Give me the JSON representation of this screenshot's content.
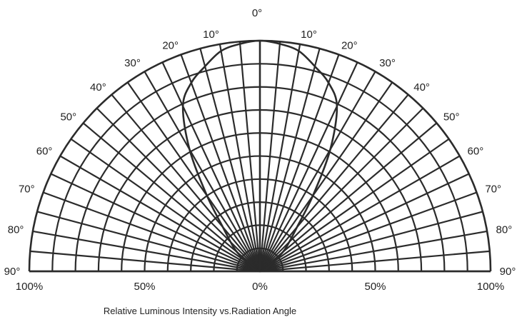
{
  "chart_data": {
    "type": "polar",
    "title": "Relative Luminous Intensity vs.Radiation Angle",
    "angle_unit": "degrees",
    "angle_ticks": [
      0,
      10,
      20,
      30,
      40,
      50,
      60,
      70,
      80,
      90
    ],
    "angle_labels_left": [
      "0°",
      "10°",
      "20°",
      "30°",
      "40°",
      "50°",
      "60°",
      "70°",
      "80°",
      "90°"
    ],
    "angle_labels_right": [
      "0°",
      "10°",
      "20°",
      "30°",
      "40°",
      "50°",
      "60°",
      "70°",
      "80°",
      "90°"
    ],
    "radius_labels": [
      "100%",
      "50%",
      "0%",
      "50%",
      "100%"
    ],
    "radius_range": [
      0,
      100
    ],
    "grid": true,
    "colors": {
      "line": "#2b2b2b",
      "grid": "#2b2b2b",
      "background": "#ffffff"
    },
    "series": [
      {
        "angles": [
          -90,
          -80,
          -70,
          -60,
          -50,
          -45,
          -40,
          -35,
          -30,
          -25,
          -20,
          -15,
          -10,
          -5,
          0,
          5,
          10,
          15,
          20,
          25,
          30,
          35,
          40,
          45,
          50,
          60,
          70,
          80,
          90
        ],
        "values": [
          0,
          1,
          3,
          5,
          13,
          18,
          25,
          40,
          61,
          79,
          87,
          92,
          97,
          99,
          100,
          99,
          97,
          92,
          87,
          79,
          61,
          40,
          25,
          18,
          13,
          5,
          3,
          1,
          0
        ]
      }
    ]
  }
}
